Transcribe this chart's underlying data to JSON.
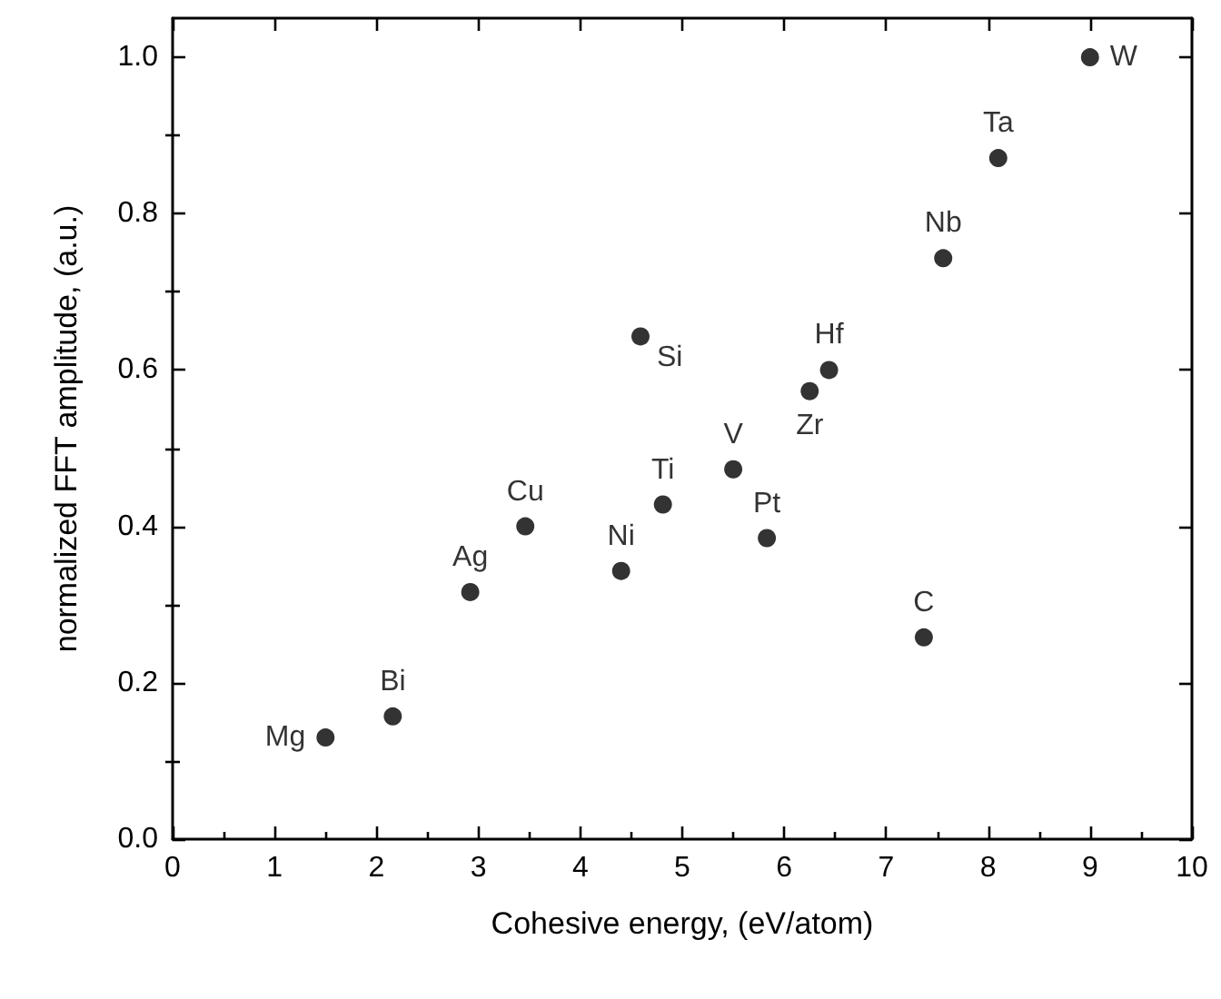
{
  "chart_data": {
    "type": "scatter",
    "xlabel": "Cohesive energy, (eV/atom)",
    "ylabel": "normalized FFT amplitude, (a.u.)",
    "xlim": [
      0,
      10
    ],
    "xticks": [
      0,
      1,
      2,
      3,
      4,
      5,
      6,
      7,
      8,
      9,
      10
    ],
    "ylim": [
      0,
      1.05
    ],
    "yticks": [
      {
        "value": 0,
        "label": "0.0"
      },
      {
        "value": 0.2,
        "label": "0.2"
      },
      {
        "value": 0.4,
        "label": "0.4"
      },
      {
        "value": 0.6,
        "label": "0.6"
      },
      {
        "value": 0.8,
        "label": "0.8"
      },
      {
        "value": 1,
        "label": "1.0"
      }
    ],
    "grid": false,
    "marker": "circle",
    "series": [
      {
        "name": "Mg",
        "color": "#000000",
        "x": [
          1.5
        ],
        "values": [
          0.13
        ]
      },
      {
        "name": "Bi",
        "color": "#000000",
        "x": [
          2.16
        ],
        "values": [
          0.157
        ]
      },
      {
        "name": "Ag",
        "color": "#000000",
        "x": [
          2.92
        ],
        "values": [
          0.316
        ]
      },
      {
        "name": "Cu",
        "color": "#000000",
        "x": [
          3.46
        ],
        "values": [
          0.4
        ]
      },
      {
        "name": "Ni",
        "color": "#000000",
        "x": [
          4.4
        ],
        "values": [
          0.343
        ]
      },
      {
        "name": "Ti",
        "color": "#000000",
        "x": [
          4.81
        ],
        "values": [
          0.428
        ]
      },
      {
        "name": "Si",
        "color": "#000000",
        "x": [
          4.59
        ],
        "values": [
          0.643
        ]
      },
      {
        "name": "V",
        "color": "#000000",
        "x": [
          5.5
        ],
        "values": [
          0.473
        ]
      },
      {
        "name": "Pt",
        "color": "#000000",
        "x": [
          5.83
        ],
        "values": [
          0.385
        ]
      },
      {
        "name": "Zr",
        "color": "#000000",
        "x": [
          6.25
        ],
        "values": [
          0.573
        ]
      },
      {
        "name": "Hf",
        "color": "#000000",
        "x": [
          6.44
        ],
        "values": [
          0.6
        ]
      },
      {
        "name": "C",
        "color": "#000000",
        "x": [
          7.37
        ],
        "values": [
          0.258
        ]
      },
      {
        "name": "Nb",
        "color": "#000000",
        "x": [
          7.56
        ],
        "values": [
          0.743
        ]
      },
      {
        "name": "Ta",
        "color": "#000000",
        "x": [
          8.1
        ],
        "values": [
          0.871
        ]
      },
      {
        "name": "W",
        "color": "#000000",
        "x": [
          9.0
        ],
        "values": [
          1.0
        ]
      }
    ]
  }
}
